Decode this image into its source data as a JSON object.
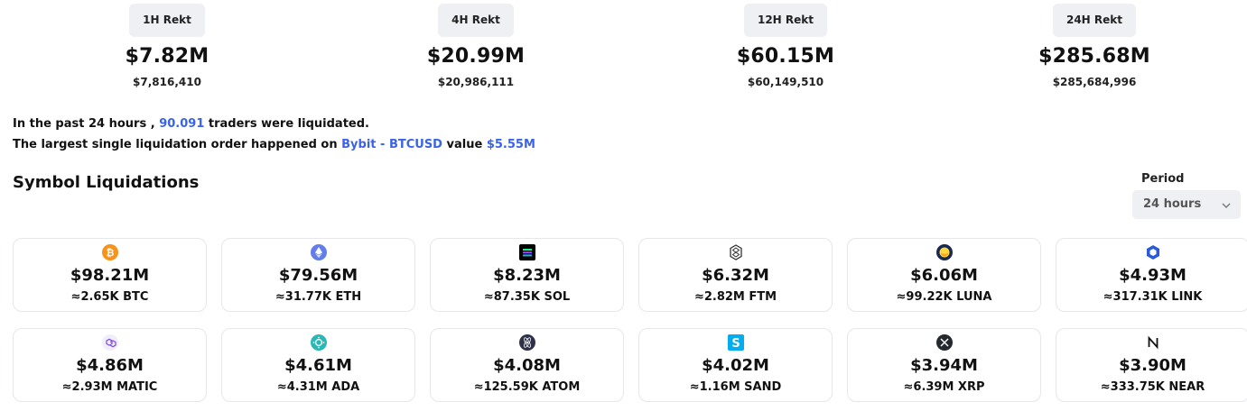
{
  "rekt": [
    {
      "label": "1H Rekt",
      "amount": "$7.82M",
      "exact": "$7,816,410"
    },
    {
      "label": "4H Rekt",
      "amount": "$20.99M",
      "exact": "$20,986,111"
    },
    {
      "label": "12H Rekt",
      "amount": "$60.15M",
      "exact": "$60,149,510"
    },
    {
      "label": "24H Rekt",
      "amount": "$285.68M",
      "exact": "$285,684,996"
    }
  ],
  "summary": {
    "line1_prefix": "In the past 24 hours ,",
    "traders": "90.091",
    "line1_suffix": "traders were liquidated.",
    "line2_prefix": "The largest single liquidation order happened on",
    "exchange": "Bybit - BTCUSD",
    "value_word": "value",
    "value": "$5.55M"
  },
  "section_title": "Symbol Liquidations",
  "period": {
    "label": "Period",
    "selected": "24 hours"
  },
  "colors": {
    "accent": "#3b63e8",
    "pill_bg": "#eef0f3",
    "card_border": "#e5e7eb"
  },
  "symbols": [
    {
      "amount": "$98.21M",
      "qty": "≈2.65K BTC",
      "icon": "bitcoin-icon"
    },
    {
      "amount": "$79.56M",
      "qty": "≈31.77K ETH",
      "icon": "ethereum-icon"
    },
    {
      "amount": "$8.23M",
      "qty": "≈87.35K SOL",
      "icon": "solana-icon"
    },
    {
      "amount": "$6.32M",
      "qty": "≈2.82M FTM",
      "icon": "fantom-icon"
    },
    {
      "amount": "$6.06M",
      "qty": "≈99.22K LUNA",
      "icon": "terra-luna-icon"
    },
    {
      "amount": "$4.93M",
      "qty": "≈317.31K LINK",
      "icon": "chainlink-icon"
    },
    {
      "amount": "$4.86M",
      "qty": "≈2.93M MATIC",
      "icon": "polygon-icon"
    },
    {
      "amount": "$4.61M",
      "qty": "≈4.31M ADA",
      "icon": "cardano-icon"
    },
    {
      "amount": "$4.08M",
      "qty": "≈125.59K ATOM",
      "icon": "cosmos-icon"
    },
    {
      "amount": "$4.02M",
      "qty": "≈1.16M SAND",
      "icon": "sandbox-icon"
    },
    {
      "amount": "$3.94M",
      "qty": "≈6.39M XRP",
      "icon": "xrp-icon"
    },
    {
      "amount": "$3.90M",
      "qty": "≈333.75K NEAR",
      "icon": "near-icon"
    }
  ]
}
